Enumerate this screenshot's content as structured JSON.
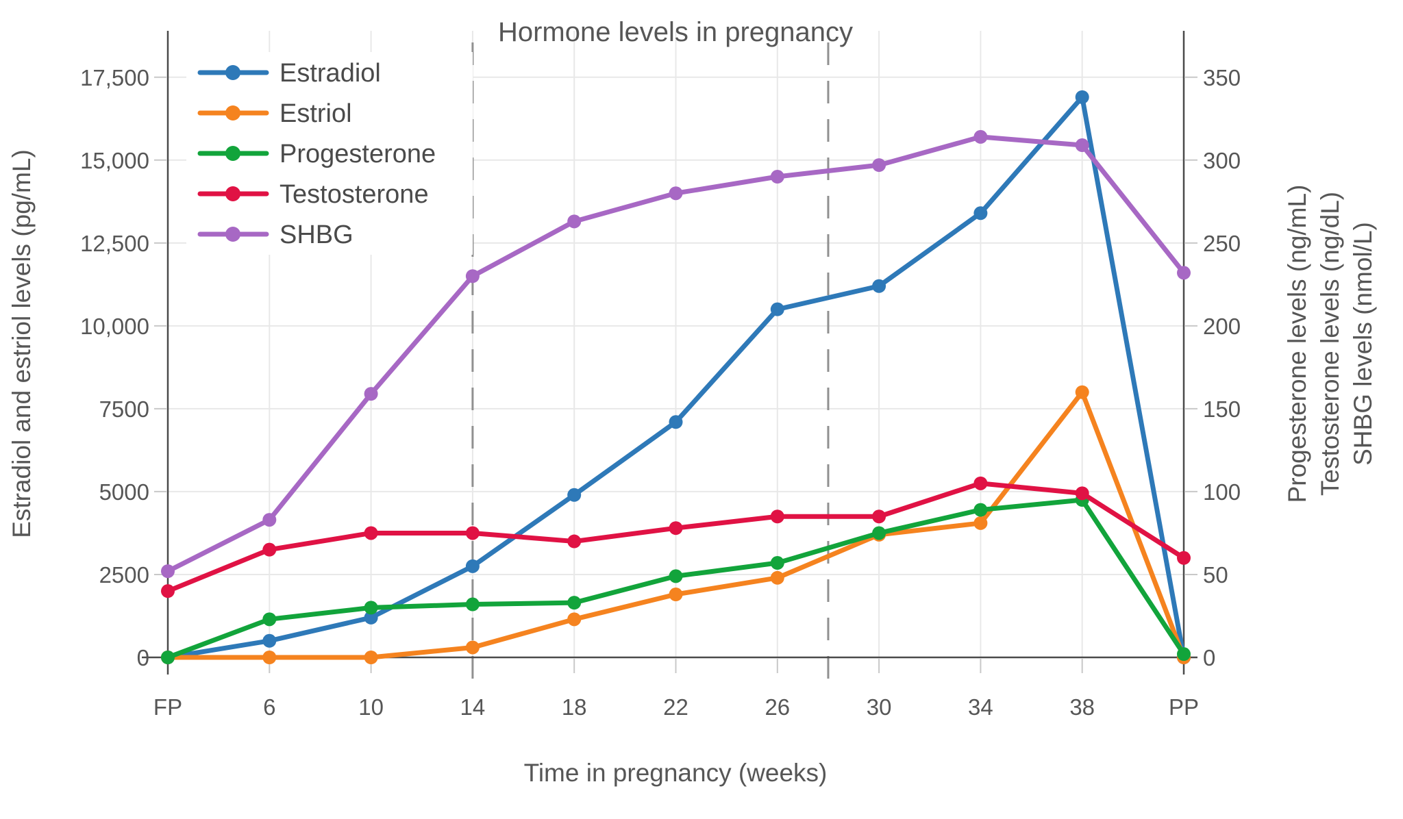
{
  "title": "Hormone levels in pregnancy",
  "axes": {
    "x": {
      "title": "Time in pregnancy (weeks)",
      "categories": [
        "FP",
        "6",
        "10",
        "14",
        "18",
        "22",
        "26",
        "30",
        "34",
        "38",
        "PP"
      ]
    },
    "y_left": {
      "title": "Estradiol and estriol levels (pg/mL)",
      "tick_values": [
        0,
        2500,
        5000,
        7500,
        10000,
        12500,
        15000,
        17500
      ],
      "tick_labels": [
        "0",
        "2500",
        "5000",
        "7500",
        "10,000",
        "12,500",
        "15,000",
        "17,500"
      ],
      "max": 18900
    },
    "y_right": {
      "titles": [
        "Progesterone levels (ng/mL)",
        "Testosterone levels (ng/dL)",
        "SHBG levels (nmol/L)"
      ],
      "tick_values": [
        0,
        50,
        100,
        150,
        200,
        250,
        300,
        350
      ],
      "tick_labels": [
        "0",
        "50",
        "100",
        "150",
        "200",
        "250",
        "300",
        "350"
      ],
      "max": 378
    }
  },
  "chart_data": {
    "type": "line",
    "categories": [
      "FP",
      "6",
      "10",
      "14",
      "18",
      "22",
      "26",
      "30",
      "34",
      "38",
      "PP"
    ],
    "series": [
      {
        "name": "Estradiol",
        "axis": "left",
        "color": "#2E79B8",
        "unit": "pg/mL",
        "values": [
          0,
          500,
          1200,
          2750,
          4900,
          7100,
          10500,
          11200,
          13400,
          16900,
          0
        ]
      },
      {
        "name": "Estriol",
        "axis": "left",
        "color": "#F5831F",
        "unit": "pg/mL",
        "values": [
          0,
          0,
          0,
          300,
          1150,
          1900,
          2400,
          3700,
          4050,
          8000,
          0
        ]
      },
      {
        "name": "Progesterone",
        "axis": "right",
        "color": "#12A43B",
        "unit": "ng/mL",
        "values": [
          0,
          23,
          30,
          32,
          33,
          49,
          57,
          75,
          89,
          95,
          2
        ]
      },
      {
        "name": "Testosterone",
        "axis": "right",
        "color": "#E01244",
        "unit": "ng/dL",
        "values": [
          40,
          65,
          75,
          75,
          70,
          78,
          85,
          85,
          105,
          99,
          60
        ]
      },
      {
        "name": "SHBG",
        "axis": "right",
        "color": "#A768C4",
        "unit": "nmol/L",
        "values": [
          52,
          83,
          159,
          230,
          263,
          280,
          290,
          297,
          314,
          309,
          232
        ]
      }
    ],
    "dashed_vertical_lines_weeks": [
      14,
      28
    ],
    "ylim_left": [
      0,
      18900
    ],
    "ylim_right": [
      0,
      378
    ],
    "grid": true,
    "legend_position": "top-left"
  },
  "colors": {
    "background": "#FFFFFF",
    "grid": "#E8E8E8",
    "axis": "#4A4A4A",
    "tick": "#C8C8C8",
    "dashed_line": "#909090",
    "text": "#565656",
    "legend_text": "#4A4A4A"
  }
}
